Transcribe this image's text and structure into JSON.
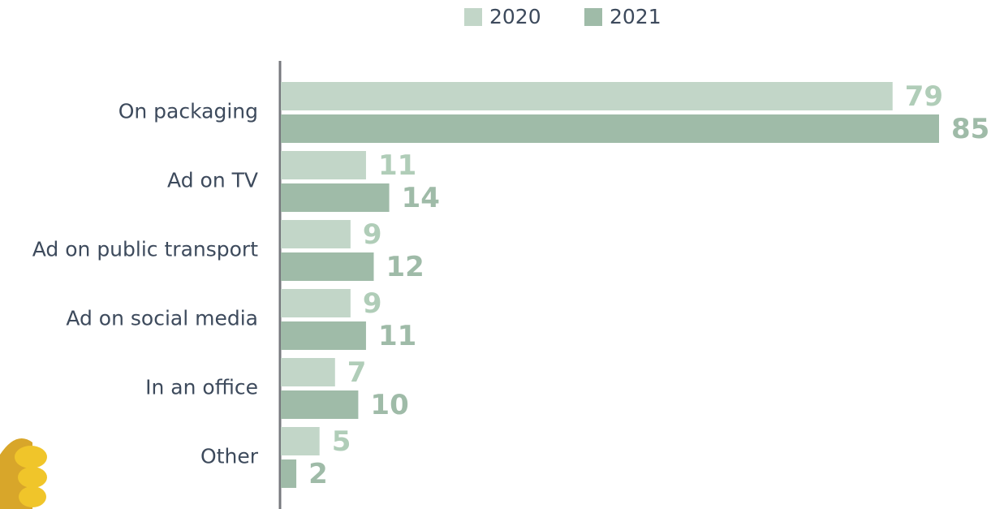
{
  "chart_data": {
    "type": "grouped-bar-horizontal",
    "categories": [
      "On packaging",
      "Ad on TV",
      "Ad on public transport",
      "Ad on social media",
      "In an office",
      "Other"
    ],
    "series": [
      {
        "name": "2020",
        "color": "#c2d6c8",
        "values": [
          79,
          11,
          9,
          9,
          7,
          5
        ]
      },
      {
        "name": "2021",
        "color": "#9fbba8",
        "values": [
          85,
          14,
          12,
          11,
          10,
          2
        ]
      }
    ]
  }
}
